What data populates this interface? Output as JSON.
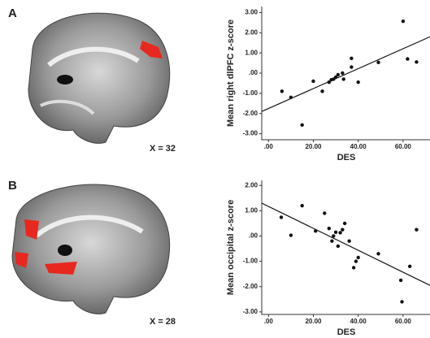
{
  "panels": [
    {
      "label": "A",
      "slice_label": "X = 32"
    },
    {
      "label": "B",
      "slice_label": "X = 28"
    }
  ],
  "chart_data": [
    {
      "type": "scatter",
      "y_label": "Mean right dlPFC z-score",
      "x_label": "DES",
      "color": "#111111",
      "x": [
        6,
        10,
        15,
        20,
        24,
        27,
        28,
        29,
        30,
        31,
        33,
        33.5,
        37,
        37,
        40,
        49,
        60,
        62,
        66
      ],
      "values": [
        -0.9,
        -1.2,
        -2.57,
        -0.4,
        -0.9,
        -0.45,
        -0.33,
        -0.3,
        -0.2,
        -0.08,
        0,
        -0.3,
        0.73,
        0.3,
        -0.45,
        0.53,
        2.57,
        0.7,
        0.55
      ],
      "trend_line": {
        "x": [
          -3,
          72
        ],
        "y": [
          -1.9,
          1.8
        ]
      },
      "xlim": [
        -3,
        72
      ],
      "ylim": [
        -3.3,
        3.3
      ],
      "xticks": [
        {
          "value": 0,
          "label": ".00"
        },
        {
          "value": 20,
          "label": "20.00"
        },
        {
          "value": 40,
          "label": "40.00"
        },
        {
          "value": 60,
          "label": "60.00"
        }
      ],
      "yticks": [
        {
          "value": 3,
          "label": "3.00"
        },
        {
          "value": 2,
          "label": "2.00"
        },
        {
          "value": 1,
          "label": "1.00"
        },
        {
          "value": 0,
          "label": ".00"
        },
        {
          "value": -1,
          "label": "-1.00"
        },
        {
          "value": -2,
          "label": "-2.00"
        },
        {
          "value": -3,
          "label": "-3.00"
        }
      ]
    },
    {
      "type": "scatter",
      "y_label": "Mean occipital z-score",
      "x_label": "DES",
      "color": "#111111",
      "x": [
        5.7,
        10,
        15,
        21,
        25,
        27,
        28.3,
        29,
        30,
        31,
        32,
        33,
        34,
        36,
        38,
        39,
        40,
        49,
        59,
        59.5,
        63,
        66
      ],
      "values": [
        0.74,
        0.03,
        1.2,
        0.2,
        0.9,
        0.3,
        -0.2,
        0,
        0.15,
        -0.4,
        0.13,
        0.25,
        0.5,
        -0.2,
        -1.25,
        -1.0,
        -0.85,
        -0.7,
        -1.75,
        -2.6,
        -1.2,
        0.25
      ],
      "trend_line": {
        "x": [
          -3,
          72
        ],
        "y": [
          1.3,
          -1.95
        ]
      },
      "xlim": [
        -3,
        72
      ],
      "ylim": [
        -3.1,
        2.2
      ],
      "xticks": [
        {
          "value": 0,
          "label": ".00"
        },
        {
          "value": 20,
          "label": "20.00"
        },
        {
          "value": 40,
          "label": "40.00"
        },
        {
          "value": 60,
          "label": "60.00"
        }
      ],
      "yticks": [
        {
          "value": 2,
          "label": "2.00"
        },
        {
          "value": 1,
          "label": "1.00"
        },
        {
          "value": 0,
          "label": ".00"
        },
        {
          "value": -1,
          "label": "-1.00"
        },
        {
          "value": -2,
          "label": "-2.00"
        },
        {
          "value": -3,
          "label": "-3.00"
        }
      ]
    }
  ]
}
